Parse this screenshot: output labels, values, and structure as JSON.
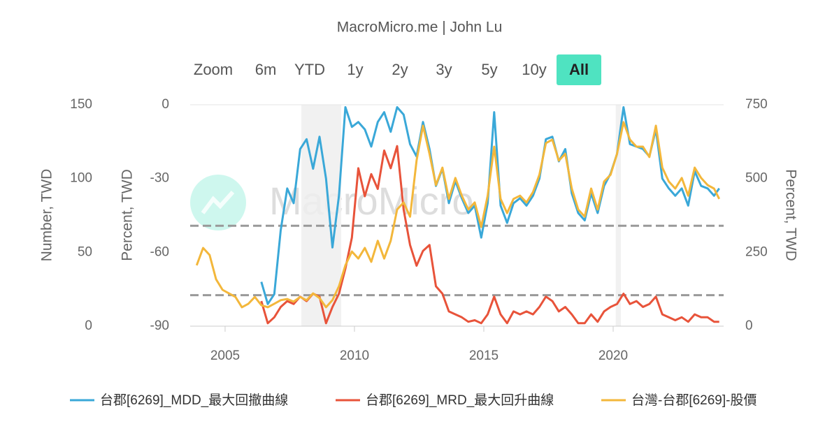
{
  "chart_data": {
    "type": "line",
    "title": "MacroMicro.me | John Lu",
    "watermark": "MacroMicro",
    "toolbar": {
      "label": "Zoom",
      "buttons": [
        "6m",
        "YTD",
        "1y",
        "2y",
        "3y",
        "5y",
        "10y",
        "All"
      ],
      "active_index": 7
    },
    "ylabel": "Number, TWD",
    "y2label": "Percent, TWD",
    "y3label": "Percent, TWD",
    "xlim": [
      2003.65,
      2024.27
    ],
    "xticks": [
      2005,
      2010,
      2015,
      2020
    ],
    "ylim": [
      0,
      150
    ],
    "yticks": [
      0,
      50,
      100,
      150
    ],
    "y2lim": [
      -90,
      0
    ],
    "y2ticks": [
      -90,
      -60,
      -30,
      0
    ],
    "y3lim": [
      0,
      750
    ],
    "y3ticks": [
      0,
      250,
      500,
      750
    ],
    "shaded_ranges": [
      [
        2007.95,
        2009.49
      ],
      [
        2020.1,
        2020.3
      ]
    ],
    "reference_lines": [
      68,
      21
    ],
    "x": [
      2003.9,
      2004.15,
      2004.4,
      2004.65,
      2004.9,
      2005.15,
      2005.4,
      2005.65,
      2005.9,
      2006.15,
      2006.4,
      2006.65,
      2006.9,
      2007.15,
      2007.4,
      2007.65,
      2007.9,
      2008.15,
      2008.4,
      2008.65,
      2008.9,
      2009.15,
      2009.4,
      2009.65,
      2009.9,
      2010.15,
      2010.4,
      2010.65,
      2010.9,
      2011.15,
      2011.4,
      2011.65,
      2011.9,
      2012.15,
      2012.4,
      2012.65,
      2012.9,
      2013.15,
      2013.4,
      2013.65,
      2013.9,
      2014.15,
      2014.4,
      2014.65,
      2014.9,
      2015.15,
      2015.4,
      2015.65,
      2015.9,
      2016.15,
      2016.4,
      2016.65,
      2016.9,
      2017.15,
      2017.4,
      2017.65,
      2017.9,
      2018.15,
      2018.4,
      2018.65,
      2018.9,
      2019.15,
      2019.4,
      2019.65,
      2019.9,
      2020.15,
      2020.4,
      2020.65,
      2020.9,
      2021.15,
      2021.4,
      2021.65,
      2021.9,
      2022.15,
      2022.4,
      2022.65,
      2022.9,
      2023.15,
      2023.4,
      2023.65,
      2023.9,
      2024.1
    ],
    "series": [
      {
        "name": "台郡[6269]_MDD_最大回撤曲線",
        "color": "#3aa8d8",
        "axis": "y2",
        "values": [
          null,
          null,
          null,
          null,
          null,
          null,
          null,
          null,
          null,
          null,
          -72,
          -81,
          -77,
          -51,
          -34,
          -40,
          -18,
          -14,
          -26,
          -13,
          -30,
          -58,
          -37,
          -1,
          -9,
          -7,
          -10,
          -17,
          -7,
          -3,
          -11,
          -1,
          -4,
          -16,
          -21,
          -7,
          -18,
          -33,
          -26,
          -40,
          -31,
          -38,
          -44,
          -41,
          -54,
          -40,
          -3,
          -41,
          -48,
          -40,
          -38,
          -41,
          -37,
          -30,
          -14,
          -13,
          -23,
          -18,
          -36,
          -44,
          -47,
          -36,
          -44,
          -33,
          -28,
          -20,
          -1,
          -16,
          -17,
          -18,
          -21,
          -10,
          -30,
          -34,
          -37,
          -34,
          -41,
          -27,
          -33,
          -34,
          -37,
          -34
        ]
      },
      {
        "name": "台郡[6269]_MRD_最大回升曲線",
        "color": "#e8533a",
        "axis": "y",
        "values": [
          null,
          null,
          null,
          null,
          null,
          null,
          null,
          null,
          null,
          null,
          17,
          2,
          6,
          13,
          17,
          15,
          20,
          17,
          22,
          20,
          2,
          13,
          22,
          39,
          60,
          107,
          88,
          103,
          93,
          119,
          107,
          122,
          79,
          55,
          41,
          51,
          55,
          27,
          22,
          10,
          8,
          6,
          3,
          4,
          2,
          8,
          20,
          8,
          2,
          10,
          8,
          10,
          8,
          13,
          20,
          17,
          10,
          13,
          8,
          2,
          2,
          8,
          3,
          10,
          13,
          15,
          22,
          15,
          17,
          13,
          15,
          20,
          8,
          6,
          4,
          6,
          3,
          8,
          6,
          6,
          3,
          3
        ]
      },
      {
        "name": "台灣-台郡[6269]-股價",
        "color": "#f3b73b",
        "axis": "y3",
        "values": [
          206,
          265,
          241,
          159,
          123,
          111,
          99,
          64,
          76,
          99,
          71,
          64,
          76,
          88,
          92,
          83,
          99,
          88,
          111,
          95,
          64,
          88,
          135,
          206,
          253,
          229,
          265,
          218,
          289,
          229,
          289,
          395,
          419,
          371,
          561,
          679,
          584,
          478,
          537,
          431,
          502,
          442,
          395,
          419,
          336,
          442,
          608,
          431,
          383,
          431,
          442,
          419,
          454,
          513,
          620,
          632,
          561,
          584,
          466,
          395,
          371,
          466,
          395,
          490,
          513,
          584,
          691,
          632,
          608,
          608,
          573,
          679,
          537,
          490,
          466,
          502,
          442,
          537,
          502,
          478,
          466,
          431
        ]
      }
    ]
  }
}
